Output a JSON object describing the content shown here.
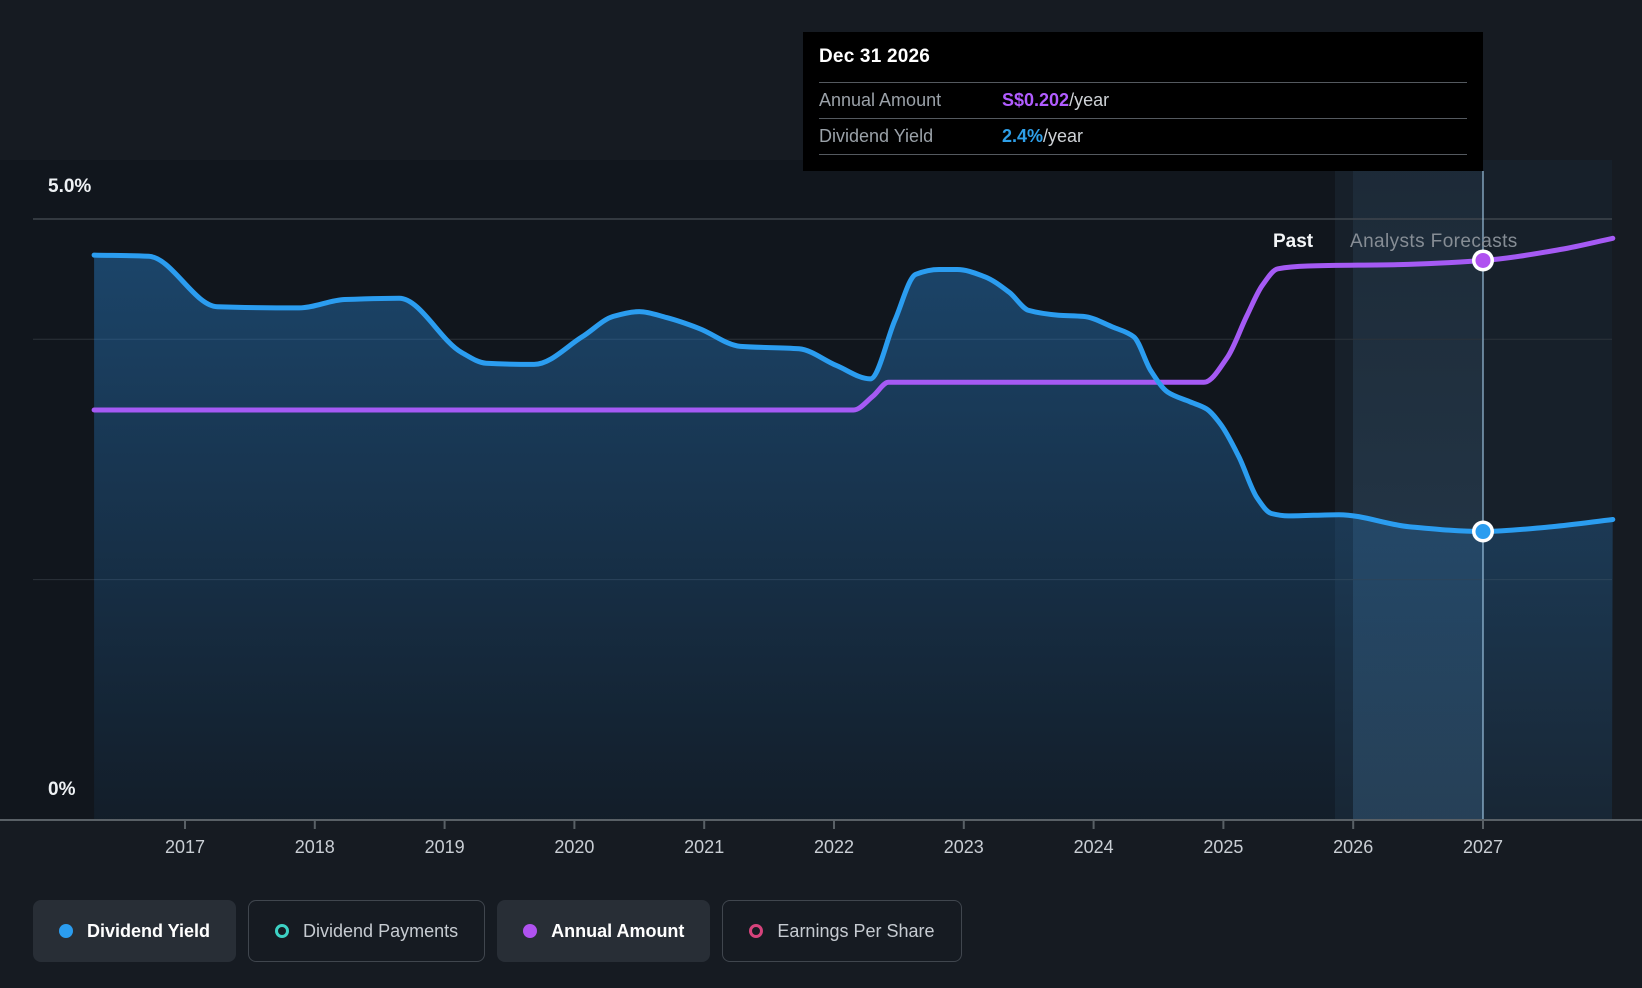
{
  "page": {
    "background": "#161b22"
  },
  "tooltip": {
    "title": "Dec 31 2026",
    "rows": [
      {
        "label": "Annual Amount",
        "value": "S$0.202",
        "suffix": "/year",
        "value_color": "#b15cff"
      },
      {
        "label": "Dividend Yield",
        "value": "2.4%",
        "suffix": "/year",
        "value_color": "#2e9fe8"
      }
    ]
  },
  "labels": {
    "past": "Past",
    "forecast": "Analysts Forecasts"
  },
  "legend": [
    {
      "label": "Dividend Yield",
      "style": "solid",
      "color": "#2b9df0"
    },
    {
      "label": "Dividend Payments",
      "style": "outline",
      "color": "#3dd1c4"
    },
    {
      "label": "Annual Amount",
      "style": "solid",
      "color": "#b052f0"
    },
    {
      "label": "Earnings Per Share",
      "style": "outline",
      "color": "#d6437c"
    }
  ],
  "chart_data": {
    "type": "area",
    "title": "Dividend yield history and forecast",
    "x_ticks": [
      "2017",
      "2018",
      "2019",
      "2020",
      "2021",
      "2022",
      "2023",
      "2024",
      "2025",
      "2026",
      "2027"
    ],
    "y_axis": {
      "max_label": "5.0%",
      "min_label": "0%",
      "unit": "%",
      "min": 0,
      "max": 5,
      "gridlines_pct": [
        5,
        4,
        2
      ]
    },
    "regions": {
      "x_start_year": 2016.3,
      "x_end_year": 2028,
      "past_end_year": 2025.86,
      "band_start_year": 2026,
      "band_end_year": 2027
    },
    "hover": {
      "date": "Dec 31 2026",
      "year": 2027,
      "dividend_yield_pct": 2.4,
      "annual_amount": 0.202
    },
    "series": [
      {
        "name": "Dividend Yield",
        "unit": "%",
        "color": "#2b9df0",
        "area": true,
        "points": [
          [
            2016.3,
            4.7
          ],
          [
            2016.72,
            4.69
          ],
          [
            2017.25,
            4.27
          ],
          [
            2017.88,
            4.26
          ],
          [
            2018.23,
            4.33
          ],
          [
            2018.65,
            4.34
          ],
          [
            2019.13,
            3.89
          ],
          [
            2019.32,
            3.8
          ],
          [
            2019.69,
            3.79
          ],
          [
            2020.06,
            4.02
          ],
          [
            2020.3,
            4.19
          ],
          [
            2020.5,
            4.23
          ],
          [
            2020.71,
            4.18
          ],
          [
            2020.96,
            4.09
          ],
          [
            2021.28,
            3.94
          ],
          [
            2021.73,
            3.92
          ],
          [
            2022.02,
            3.78
          ],
          [
            2022.28,
            3.67
          ],
          [
            2022.47,
            4.16
          ],
          [
            2022.63,
            4.54
          ],
          [
            2022.81,
            4.58
          ],
          [
            2022.95,
            4.58
          ],
          [
            2023.16,
            4.52
          ],
          [
            2023.35,
            4.39
          ],
          [
            2023.5,
            4.24
          ],
          [
            2023.73,
            4.2
          ],
          [
            2023.92,
            4.19
          ],
          [
            2024.15,
            4.1
          ],
          [
            2024.31,
            4.02
          ],
          [
            2024.44,
            3.74
          ],
          [
            2024.57,
            3.56
          ],
          [
            2024.74,
            3.48
          ],
          [
            2024.87,
            3.42
          ],
          [
            2024.98,
            3.29
          ],
          [
            2025.12,
            3.02
          ],
          [
            2025.26,
            2.68
          ],
          [
            2025.37,
            2.55
          ],
          [
            2025.5,
            2.53
          ],
          [
            2025.89,
            2.54
          ],
          [
            2026.43,
            2.44
          ],
          [
            2027.0,
            2.4
          ],
          [
            2027.53,
            2.44
          ],
          [
            2028.0,
            2.5
          ]
        ]
      },
      {
        "name": "Annual Amount",
        "unit": "S$",
        "color": "#a55af4",
        "area": false,
        "points": [
          [
            2016.3,
            0.148
          ],
          [
            2020.0,
            0.148
          ],
          [
            2022.15,
            0.148
          ],
          [
            2022.3,
            0.153
          ],
          [
            2022.42,
            0.158
          ],
          [
            2023.5,
            0.158
          ],
          [
            2024.85,
            0.158
          ],
          [
            2025.03,
            0.167
          ],
          [
            2025.18,
            0.182
          ],
          [
            2025.3,
            0.193
          ],
          [
            2025.42,
            0.199
          ],
          [
            2025.65,
            0.2
          ],
          [
            2026.35,
            0.2005
          ],
          [
            2027.0,
            0.202
          ],
          [
            2027.6,
            0.206
          ],
          [
            2028.0,
            0.21
          ]
        ]
      }
    ]
  }
}
